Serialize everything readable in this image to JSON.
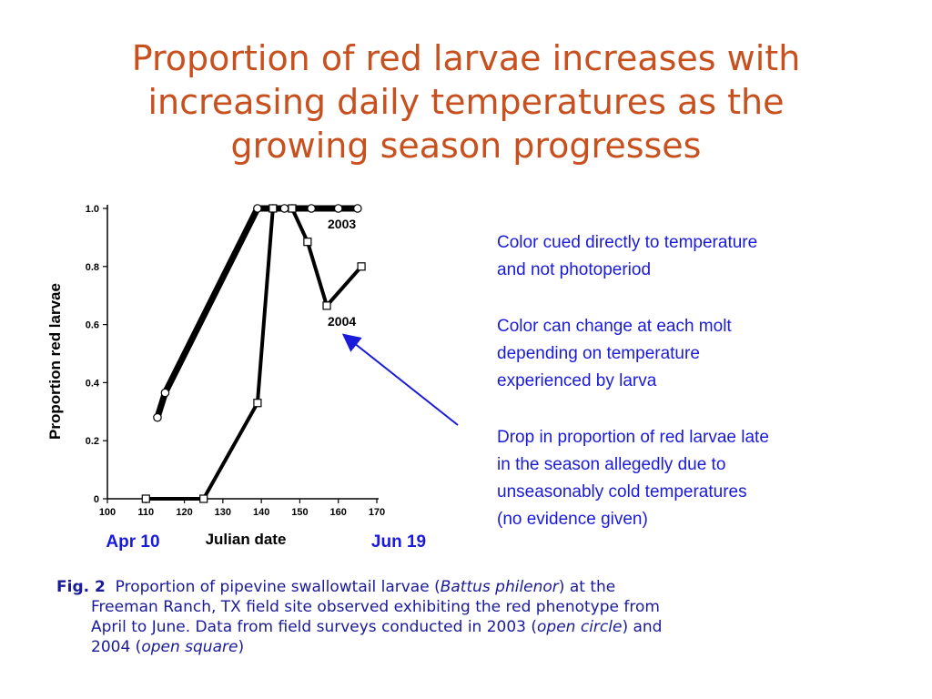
{
  "title_lines": [
    "Proportion of red larvae increases with",
    "increasing daily temperatures as the",
    "growing season progresses"
  ],
  "chart_data": {
    "type": "line",
    "ylabel": "Proportion red larvae",
    "xlabel": "Julian date",
    "xlim": [
      100,
      170
    ],
    "ylim": [
      0,
      1.0
    ],
    "x_ticks": [
      100,
      110,
      120,
      130,
      140,
      150,
      160,
      170
    ],
    "y_ticks": [
      {
        "value": 0,
        "label": "0"
      },
      {
        "value": 0.2,
        "label": "0.2"
      },
      {
        "value": 0.4,
        "label": "0.4"
      },
      {
        "value": 0.6,
        "label": "0.6"
      },
      {
        "value": 0.8,
        "label": "0.8"
      },
      {
        "value": 1.0,
        "label": "1.0"
      }
    ],
    "series": [
      {
        "name": "2003",
        "marker": "circle",
        "points": [
          [
            113,
            0.28
          ],
          [
            115,
            0.365
          ],
          [
            139,
            1.0
          ],
          [
            143,
            1.0
          ],
          [
            146,
            1.0
          ],
          [
            148,
            1.0
          ],
          [
            153,
            1.0
          ],
          [
            160,
            1.0
          ],
          [
            165,
            1.0
          ]
        ]
      },
      {
        "name": "2004",
        "marker": "square",
        "points": [
          [
            110,
            0.0
          ],
          [
            125,
            0.0
          ],
          [
            139,
            0.33
          ],
          [
            143,
            1.0
          ],
          [
            148,
            1.0
          ],
          [
            152,
            0.885
          ],
          [
            157,
            0.665
          ],
          [
            166,
            0.8
          ]
        ]
      }
    ],
    "annotations": [
      {
        "text": "Apr 10",
        "x": 110
      },
      {
        "text": "Jun 19",
        "x": 170
      }
    ]
  },
  "notes": [
    "Color cued directly to temperature\nand not photoperiod",
    "Color can change at each molt\ndepending on temperature\nexperienced by larva",
    "Drop in proportion of red larvae late\nin the season allegedly due to\nunseasonably cold temperatures\n(no evidence given)"
  ],
  "caption": {
    "fig_label": "Fig. 2",
    "line1_before": "Proportion of pipevine swallowtail larvae (",
    "species": "Battus philenor",
    "line1_after": ") at the",
    "line2": "Freeman Ranch, TX field site observed exhibiting the red phenotype from",
    "line3_before": "April to June. Data from field surveys conducted in 2003 (",
    "open_circle": "open circle",
    "line3_after": ") and",
    "line4_before": "2004 (",
    "open_square": "open square",
    "line4_after": ")"
  },
  "colors": {
    "title": "#c8501e",
    "notes": "#1a1adb",
    "caption": "#1a1a9a",
    "arrow": "#1a1adb"
  }
}
